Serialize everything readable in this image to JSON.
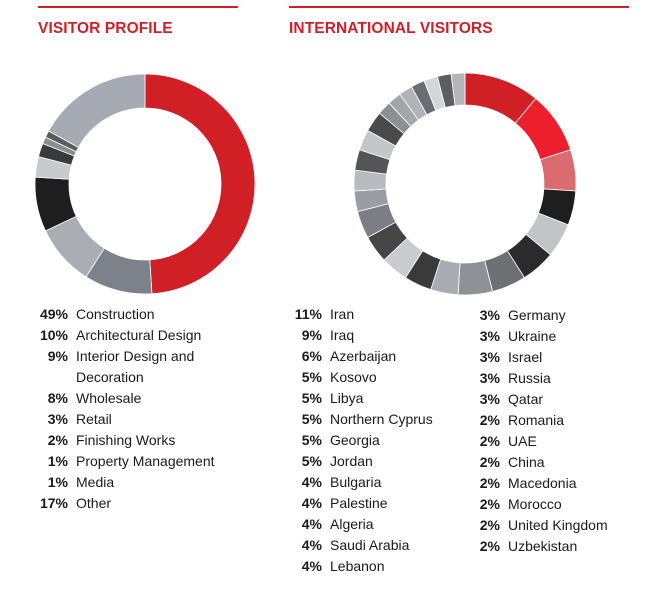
{
  "chart_data": [
    {
      "type": "pie",
      "title": "VISITOR PROFILE",
      "categories": [
        "Construction",
        "Architectural Design",
        "Interior Design and Decoration",
        "Wholesale",
        "Retail",
        "Finishing Works",
        "Property Management",
        "Media",
        "Other"
      ],
      "values": [
        49,
        10,
        9,
        8,
        3,
        2,
        1,
        1,
        17
      ],
      "pct_labels": [
        "49%",
        "10%",
        "9%",
        "8%",
        "3%",
        "2%",
        "1%",
        "1%",
        "17%"
      ],
      "colors": [
        "#d11f26",
        "#7d8189",
        "#a9adb4",
        "#1e1e1e",
        "#c8cace",
        "#3a3a3a",
        "#8a8d92",
        "#5a5c60",
        "#a6aab3"
      ]
    },
    {
      "type": "pie",
      "title": "INTERNATIONAL VISITORS",
      "categories": [
        "Iran",
        "Iraq",
        "Azerbaijan",
        "Kosovo",
        "Libya",
        "Northern Cyprus",
        "Georgia",
        "Jordan",
        "Bulgaria",
        "Palestine",
        "Algeria",
        "Saudi Arabia",
        "Lebanon",
        "Germany",
        "Ukraine",
        "Israel",
        "Russia",
        "Qatar",
        "Romania",
        "UAE",
        "China",
        "Macedonia",
        "Morocco",
        "United Kingdom",
        "Uzbekistan"
      ],
      "values": [
        11,
        9,
        6,
        5,
        5,
        5,
        5,
        5,
        4,
        4,
        4,
        4,
        4,
        3,
        3,
        3,
        3,
        3,
        2,
        2,
        2,
        2,
        2,
        2,
        2
      ],
      "pct_labels": [
        "11%",
        "9%",
        "6%",
        "5%",
        "5%",
        "5%",
        "5%",
        "5%",
        "4%",
        "4%",
        "4%",
        "4%",
        "4%",
        "3%",
        "3%",
        "3%",
        "3%",
        "3%",
        "2%",
        "2%",
        "2%",
        "2%",
        "2%",
        "2%",
        "2%"
      ],
      "colors": [
        "#d11f26",
        "#ee1f2c",
        "#d96b71",
        "#1e1e1e",
        "#c2c4c8",
        "#2b2b2b",
        "#6e7075",
        "#8e9196",
        "#a9acb2",
        "#3a3a3a",
        "#c9cbcf",
        "#454545",
        "#7b7e84",
        "#9a9da3",
        "#b8bbc0",
        "#555555",
        "#c4c6ca",
        "#4a4a4a",
        "#8c8f94",
        "#a3a6ab",
        "#b0b3b8",
        "#6b6d72",
        "#d4d6d9",
        "#5c5e62",
        "#b4b6ba"
      ]
    }
  ]
}
